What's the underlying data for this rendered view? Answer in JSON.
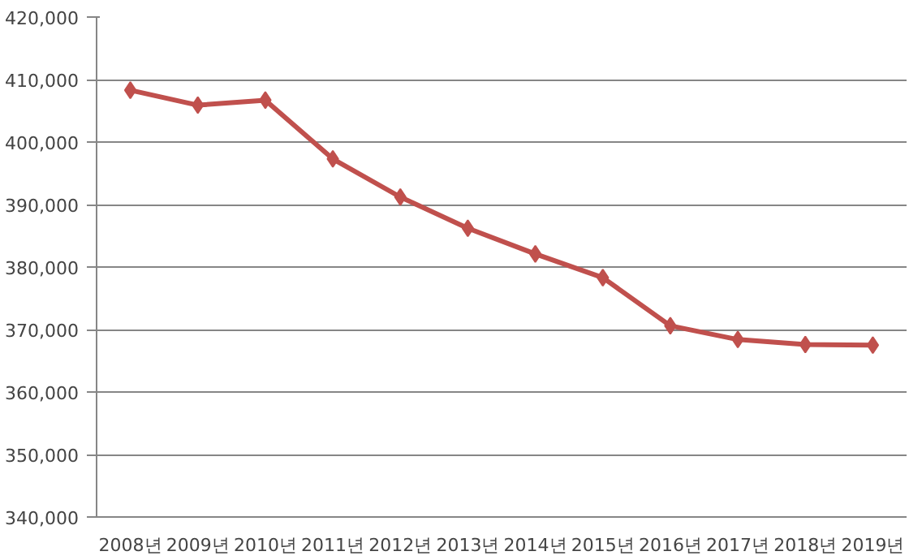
{
  "chart_data": {
    "type": "line",
    "categories": [
      "2008년",
      "2009년",
      "2010년",
      "2011년",
      "2012년",
      "2013년",
      "2014년",
      "2015년",
      "2016년",
      "2017년",
      "2018년",
      "2019년"
    ],
    "series": [
      {
        "color": "#c0504d",
        "values": [
          408300,
          405900,
          406700,
          397300,
          391200,
          386200,
          382100,
          378300,
          370600,
          368400,
          367600,
          367500
        ]
      }
    ],
    "ylim": [
      340000,
      420000
    ],
    "yticks": [
      {
        "value": 340000,
        "label": "340,000"
      },
      {
        "value": 350000,
        "label": "350,000"
      },
      {
        "value": 360000,
        "label": "360,000"
      },
      {
        "value": 370000,
        "label": "370,000"
      },
      {
        "value": 380000,
        "label": "380,000"
      },
      {
        "value": 390000,
        "label": "390,000"
      },
      {
        "value": 400000,
        "label": "400,000"
      },
      {
        "value": 410000,
        "label": "410,000"
      },
      {
        "value": 420000,
        "label": "420,000"
      }
    ],
    "grid": "y",
    "marker": "diamond",
    "line_style": "solid"
  }
}
